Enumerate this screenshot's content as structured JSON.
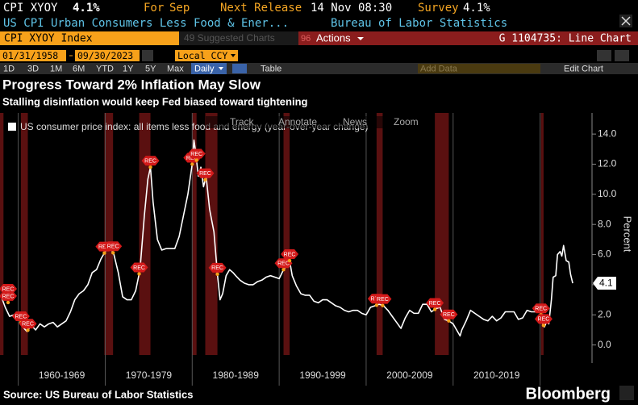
{
  "header": {
    "ticker": "CPI XYOY",
    "last": "4.1%",
    "for_label": "For",
    "for_value": "Sep",
    "next_release_label": "Next Release",
    "next_release_value": "14 Nov 08:30",
    "survey_label": "Survey",
    "survey_value": "4.1%",
    "description": "US CPI Urban Consumers Less Food & Ener...",
    "publisher": "Bureau of Labor Statistics"
  },
  "toolbar": {
    "security": "CPI XYOY Index",
    "suggested": "49 Suggested Charts",
    "actions_number": "96",
    "actions": "Actions",
    "chart_id": "G 1104735: Line Chart",
    "start_date": "01/31/1958",
    "end_date": "09/30/2023",
    "currency": "Local CCY",
    "periods": [
      "1D",
      "3D",
      "1M",
      "6M",
      "YTD",
      "1Y",
      "5Y",
      "Max"
    ],
    "frequency": "Daily",
    "table": "Table",
    "add_data": "Add Data",
    "edit_chart": "Edit Chart"
  },
  "chart_data": {
    "type": "line",
    "title": "Progress Toward 2% Inflation May Slow",
    "subtitle": "Stalling disinflation would keep Fed biased toward tightening",
    "overlay_tools": [
      "Track",
      "Annotate",
      "News",
      "Zoom"
    ],
    "y_label": "Percent",
    "source": "Source: US Bureau of Labor Statistics",
    "brand": "Bloomberg",
    "recession_label": "REC",
    "xlim": [
      1957.9,
      2025.6
    ],
    "ylim": [
      -1.2,
      15.4
    ],
    "yticks": [
      {
        "value": 0,
        "label": "0.0"
      },
      {
        "value": 2,
        "label": "2.0"
      },
      {
        "value": 4,
        "label": "4.0"
      },
      {
        "value": 6,
        "label": "6.0"
      },
      {
        "value": 8,
        "label": "8.0"
      },
      {
        "value": 10,
        "label": "10.0"
      },
      {
        "value": 12,
        "label": "12.0"
      },
      {
        "value": 14,
        "label": "14.0"
      }
    ],
    "xticks": [
      {
        "value": 1965,
        "label": "1960-1969"
      },
      {
        "value": 1975,
        "label": "1970-1979"
      },
      {
        "value": 1985,
        "label": "1980-1989"
      },
      {
        "value": 1995,
        "label": "1990-1999"
      },
      {
        "value": 2005,
        "label": "2000-2009"
      },
      {
        "value": 2015,
        "label": "2010-2019"
      }
    ],
    "xgrid": [
      1960,
      1970,
      1980,
      1990,
      2000,
      2010,
      2020
    ],
    "recessions": [
      [
        1957.6,
        1958.3
      ],
      [
        1960.3,
        1961.1
      ],
      [
        1969.9,
        1970.9
      ],
      [
        1973.9,
        1975.2
      ],
      [
        1980.0,
        1980.5
      ],
      [
        1981.5,
        1982.9
      ],
      [
        1990.5,
        1991.2
      ],
      [
        2001.2,
        2001.9
      ],
      [
        2007.9,
        2009.5
      ],
      [
        2020.1,
        2020.4
      ]
    ],
    "series": [
      {
        "name": "US consumer price index: all items less food and energy (year-over-year change)",
        "color": "#ffffff",
        "x": [
          1958.0,
          1958.5,
          1959.0,
          1959.5,
          1960.0,
          1960.5,
          1961.0,
          1961.5,
          1962.0,
          1962.5,
          1963.0,
          1963.5,
          1964.0,
          1964.5,
          1965.0,
          1965.5,
          1966.0,
          1966.5,
          1967.0,
          1967.5,
          1968.0,
          1968.5,
          1969.0,
          1969.5,
          1970.0,
          1970.5,
          1971.0,
          1971.5,
          1972.0,
          1972.5,
          1973.0,
          1973.5,
          1974.0,
          1974.5,
          1974.9,
          1975.2,
          1975.5,
          1976.0,
          1976.5,
          1977.0,
          1977.5,
          1978.0,
          1978.5,
          1979.0,
          1979.5,
          1980.0,
          1980.2,
          1980.4,
          1980.7,
          1981.0,
          1981.3,
          1981.6,
          1982.0,
          1982.5,
          1982.9,
          1983.2,
          1983.5,
          1983.9,
          1984.3,
          1984.7,
          1985.0,
          1985.5,
          1986.0,
          1986.5,
          1987.0,
          1987.5,
          1988.0,
          1988.5,
          1989.0,
          1989.5,
          1990.0,
          1990.5,
          1990.9,
          1991.2,
          1991.5,
          1992.0,
          1992.5,
          1993.0,
          1993.5,
          1994.0,
          1994.5,
          1995.0,
          1995.5,
          1996.0,
          1996.5,
          1997.0,
          1997.5,
          1998.0,
          1998.5,
          1999.0,
          1999.5,
          2000.0,
          2000.5,
          2001.0,
          2001.5,
          2002.0,
          2002.5,
          2003.0,
          2003.5,
          2004.0,
          2004.5,
          2005.0,
          2005.5,
          2006.0,
          2006.5,
          2007.0,
          2007.5,
          2008.0,
          2008.5,
          2009.0,
          2009.5,
          2010.0,
          2010.5,
          2010.8,
          2011.0,
          2011.5,
          2012.0,
          2012.5,
          2013.0,
          2013.5,
          2014.0,
          2014.5,
          2015.0,
          2015.5,
          2016.0,
          2016.5,
          2017.0,
          2017.5,
          2018.0,
          2018.5,
          2019.0,
          2019.5,
          2020.0,
          2020.3,
          2020.5,
          2020.8,
          2021.0,
          2021.3,
          2021.5,
          2021.8,
          2022.0,
          2022.3,
          2022.5,
          2022.7,
          2023.0,
          2023.3,
          2023.5,
          2023.75
        ],
        "values": [
          3.3,
          2.5,
          1.9,
          2.0,
          1.9,
          1.2,
          0.9,
          1.3,
          1.0,
          1.4,
          1.2,
          1.4,
          1.5,
          1.2,
          1.4,
          1.6,
          2.2,
          3.0,
          3.4,
          3.6,
          4.0,
          4.8,
          5.0,
          5.7,
          6.2,
          6.6,
          6.0,
          4.8,
          3.2,
          3.0,
          3.0,
          3.6,
          5.0,
          8.6,
          11.0,
          11.8,
          9.5,
          7.0,
          6.3,
          6.4,
          6.4,
          6.4,
          7.2,
          8.6,
          10.0,
          12.0,
          13.6,
          12.8,
          11.2,
          11.8,
          10.5,
          11.2,
          9.0,
          7.5,
          4.7,
          3.0,
          3.4,
          4.6,
          5.0,
          4.8,
          4.6,
          4.3,
          4.1,
          4.0,
          4.0,
          4.2,
          4.3,
          4.5,
          4.6,
          4.5,
          4.4,
          5.0,
          5.3,
          5.6,
          4.6,
          3.9,
          3.4,
          3.3,
          3.3,
          2.9,
          2.8,
          3.0,
          3.0,
          2.8,
          2.6,
          2.5,
          2.3,
          2.2,
          2.3,
          2.3,
          2.1,
          2.0,
          2.5,
          2.6,
          2.7,
          2.6,
          2.3,
          1.9,
          1.5,
          1.1,
          1.8,
          2.3,
          2.1,
          2.1,
          2.7,
          2.7,
          2.2,
          2.4,
          2.5,
          1.7,
          1.6,
          1.4,
          0.9,
          0.6,
          1.0,
          1.6,
          2.3,
          2.1,
          1.9,
          1.7,
          1.6,
          1.9,
          1.6,
          1.8,
          2.2,
          2.2,
          2.2,
          1.7,
          1.8,
          2.3,
          2.2,
          2.2,
          2.3,
          1.4,
          1.2,
          1.6,
          1.4,
          3.0,
          4.5,
          4.6,
          6.0,
          6.2,
          5.9,
          6.6,
          5.6,
          5.5,
          4.7,
          4.1
        ]
      }
    ]
  }
}
